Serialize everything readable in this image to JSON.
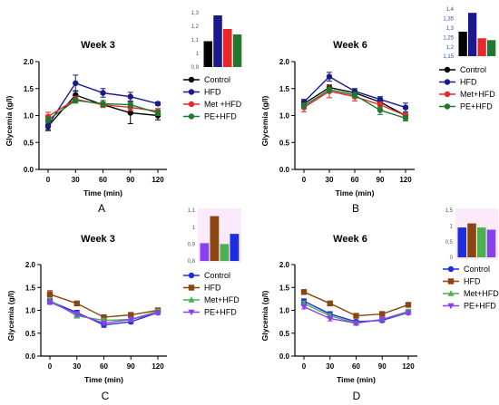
{
  "colors": {
    "control": "#000000",
    "hfd": "#1a1a8c",
    "met": "#e8292b",
    "pe": "#1f7a2e",
    "control_b": "#1f2de0",
    "hfd_b": "#8b4513",
    "met_b": "#4caf50",
    "pe_b": "#8a3ff0",
    "inset_bg": "#f7d8f7"
  },
  "chart_data": [
    {
      "type": "line",
      "panel_label": "A",
      "title": "Week 3",
      "xlabel": "Time (min)",
      "ylabel": "Glycemia (g/l)",
      "x": [
        0,
        30,
        60,
        90,
        120
      ],
      "ylim": [
        0,
        2.0
      ],
      "yticks": [
        "0.0",
        "0.5",
        "1.0",
        "1.5",
        "2.0"
      ],
      "xticks": [
        "0",
        "30",
        "60",
        "90",
        "120"
      ],
      "legend_position": "right",
      "series": [
        {
          "name": "Control",
          "color_key": "control",
          "marker": "circle",
          "values": [
            0.8,
            1.38,
            1.2,
            1.05,
            1.0
          ],
          "errors": [
            0.08,
            0.08,
            0.05,
            0.2,
            0.08
          ]
        },
        {
          "name": "HFD",
          "color_key": "hfd",
          "marker": "circle",
          "values": [
            0.82,
            1.6,
            1.42,
            1.35,
            1.22
          ],
          "errors": [
            0.08,
            0.15,
            0.08,
            0.08,
            0.03
          ]
        },
        {
          "name": "Met +HFD",
          "color_key": "met",
          "marker": "circle",
          "values": [
            0.98,
            1.3,
            1.2,
            1.15,
            1.08
          ],
          "errors": [
            0.08,
            0.06,
            0.05,
            0.06,
            0.05
          ]
        },
        {
          "name": "PE+HFD",
          "color_key": "pe",
          "marker": "circle",
          "values": [
            0.92,
            1.28,
            1.22,
            1.2,
            1.05
          ],
          "errors": [
            0.05,
            0.05,
            0.06,
            0.05,
            0.05
          ]
        }
      ],
      "inset": {
        "yticks": [
          "1,3",
          "1,2",
          "1,1",
          "1",
          "0,9"
        ],
        "ylim": [
          0.9,
          1.3
        ],
        "values": [
          1.09,
          1.28,
          1.18,
          1.14
        ],
        "color_keys": [
          "control",
          "hfd",
          "met",
          "pe"
        ],
        "tint": false
      }
    },
    {
      "type": "line",
      "panel_label": "B",
      "title": "Week 6",
      "xlabel": "Time (min)",
      "ylabel": "Glycemia (g/l)",
      "x": [
        0,
        30,
        60,
        90,
        120
      ],
      "ylim": [
        0,
        2.0
      ],
      "yticks": [
        "0.0",
        "0.5",
        "1.0",
        "1.5",
        "2.0"
      ],
      "xticks": [
        "0",
        "30",
        "60",
        "90",
        "120"
      ],
      "legend_position": "right",
      "series": [
        {
          "name": "Control",
          "color_key": "control",
          "marker": "circle",
          "values": [
            1.22,
            1.52,
            1.42,
            1.25,
            1.0
          ],
          "errors": [
            0.05,
            0.05,
            0.05,
            0.05,
            0.05
          ]
        },
        {
          "name": "HFD",
          "color_key": "hfd",
          "marker": "circle",
          "values": [
            1.25,
            1.72,
            1.45,
            1.3,
            1.15
          ],
          "errors": [
            0.05,
            0.08,
            0.05,
            0.05,
            0.08
          ]
        },
        {
          "name": "Met+HFD",
          "color_key": "met",
          "marker": "circle",
          "values": [
            1.15,
            1.45,
            1.35,
            1.2,
            1.0
          ],
          "errors": [
            0.08,
            0.12,
            0.08,
            0.05,
            0.05
          ]
        },
        {
          "name": "PE+HFD",
          "color_key": "pe",
          "marker": "circle",
          "values": [
            1.18,
            1.48,
            1.38,
            1.1,
            0.95
          ],
          "errors": [
            0.05,
            0.05,
            0.05,
            0.08,
            0.05
          ]
        }
      ],
      "inset": {
        "yticks": [
          "1,4",
          "1,35",
          "1,3",
          "1,25",
          "1,2",
          "1,15"
        ],
        "ylim": [
          1.15,
          1.4
        ],
        "values": [
          1.28,
          1.38,
          1.245,
          1.235
        ],
        "color_keys": [
          "control",
          "hfd",
          "met",
          "pe"
        ],
        "tint": false,
        "blue_ticks": true
      }
    },
    {
      "type": "line",
      "panel_label": "C",
      "title": "Week 3",
      "xlabel": "Time (min)",
      "ylabel": "Glycemia (g/l)",
      "x": [
        0,
        30,
        60,
        90,
        120
      ],
      "ylim": [
        0,
        2.0
      ],
      "yticks": [
        "0.0",
        "0.5",
        "1.0",
        "1.5",
        "2.0"
      ],
      "xticks": [
        "0",
        "30",
        "60",
        "90",
        "120"
      ],
      "legend_position": "right",
      "series": [
        {
          "name": "Control",
          "color_key": "control_b",
          "marker": "circle",
          "values": [
            1.2,
            0.95,
            0.68,
            0.75,
            0.95
          ],
          "errors": [
            0.05,
            0.05,
            0.05,
            0.04,
            0.04
          ]
        },
        {
          "name": "HFD",
          "color_key": "hfd_b",
          "marker": "square",
          "values": [
            1.35,
            1.15,
            0.85,
            0.9,
            1.0
          ],
          "errors": [
            0.08,
            0.05,
            0.04,
            0.04,
            0.04
          ]
        },
        {
          "name": "Met+HFD",
          "color_key": "met_b",
          "marker": "triangle",
          "values": [
            1.22,
            0.88,
            0.78,
            0.8,
            0.98
          ],
          "errors": [
            0.05,
            0.05,
            0.04,
            0.04,
            0.04
          ]
        },
        {
          "name": "PE+HFD",
          "color_key": "pe_b",
          "marker": "triangle-down",
          "values": [
            1.18,
            0.92,
            0.72,
            0.8,
            0.95
          ],
          "errors": [
            0.05,
            0.05,
            0.04,
            0.04,
            0.04
          ]
        }
      ],
      "inset": {
        "yticks": [
          "1,1",
          "1",
          "0,9",
          "0,8"
        ],
        "ylim": [
          0.8,
          1.1
        ],
        "values": [
          0.905,
          1.065,
          0.9,
          0.96
        ],
        "color_keys": [
          "pe_b",
          "hfd_b",
          "met_b",
          "control_b"
        ],
        "tint": true
      }
    },
    {
      "type": "line",
      "panel_label": "D",
      "title": "Week 6",
      "xlabel": "Time (min)",
      "ylabel": "Glycemia (g/l)",
      "x": [
        0,
        30,
        60,
        90,
        120
      ],
      "ylim": [
        0,
        2.0
      ],
      "yticks": [
        "0.0",
        "0.5",
        "1.0",
        "1.5",
        "2.0"
      ],
      "xticks": [
        "0",
        "30",
        "60",
        "90",
        "120"
      ],
      "legend_position": "right",
      "series": [
        {
          "name": "Control",
          "color_key": "control_b",
          "marker": "circle",
          "values": [
            1.2,
            0.92,
            0.75,
            0.78,
            0.95
          ],
          "errors": [
            0.05,
            0.05,
            0.04,
            0.04,
            0.04
          ]
        },
        {
          "name": "HFD",
          "color_key": "hfd_b",
          "marker": "square",
          "values": [
            1.4,
            1.15,
            0.88,
            0.92,
            1.12
          ],
          "errors": [
            0.04,
            0.05,
            0.04,
            0.04,
            0.04
          ]
        },
        {
          "name": "Met+HFD",
          "color_key": "met_b",
          "marker": "triangle",
          "values": [
            1.15,
            0.88,
            0.72,
            0.8,
            0.98
          ],
          "errors": [
            0.05,
            0.05,
            0.04,
            0.04,
            0.04
          ]
        },
        {
          "name": "PE+HFD",
          "color_key": "pe_b",
          "marker": "triangle-down",
          "values": [
            1.08,
            0.82,
            0.72,
            0.8,
            0.95
          ],
          "errors": [
            0.05,
            0.05,
            0.04,
            0.04,
            0.04
          ]
        }
      ],
      "inset": {
        "yticks": [
          "1,5",
          "1",
          "0,5",
          "0"
        ],
        "ylim": [
          0,
          1.5
        ],
        "values": [
          0.95,
          1.08,
          0.95,
          0.88
        ],
        "color_keys": [
          "control_b",
          "hfd_b",
          "met_b",
          "pe_b"
        ],
        "tint": true
      }
    }
  ]
}
